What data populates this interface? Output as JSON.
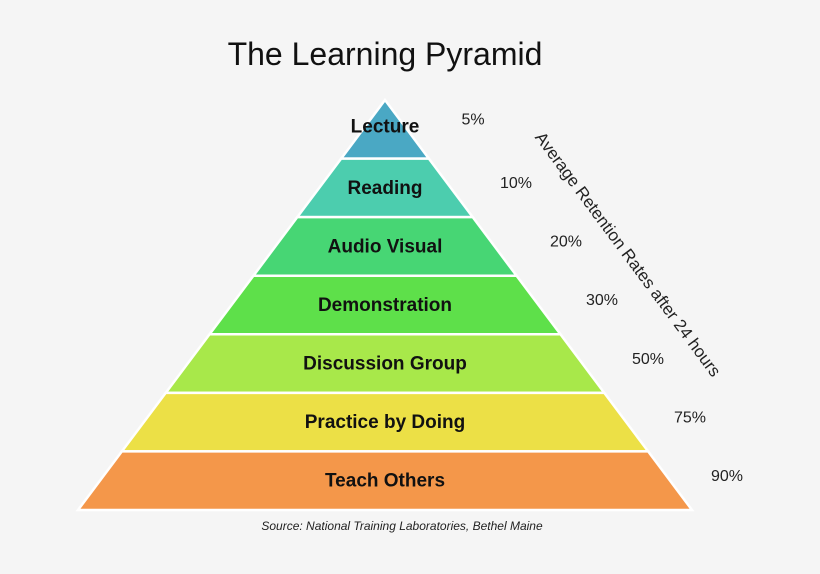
{
  "title": "The Learning Pyramid",
  "axis_label": "Average Retention Rates after 24 hours",
  "source": "Source:  National Training Laboratories, Bethel Maine",
  "levels": [
    {
      "label": "Lecture",
      "retention": "5%",
      "color": "#4aa8c4"
    },
    {
      "label": "Reading",
      "retention": "10%",
      "color": "#4ccdae"
    },
    {
      "label": "Audio Visual",
      "retention": "20%",
      "color": "#47d674"
    },
    {
      "label": "Demonstration",
      "retention": "30%",
      "color": "#5ee04a"
    },
    {
      "label": "Discussion Group",
      "retention": "50%",
      "color": "#a8e84a"
    },
    {
      "label": "Practice by Doing",
      "retention": "75%",
      "color": "#ece046"
    },
    {
      "label": "Teach Others",
      "retention": "90%",
      "color": "#f4974a"
    }
  ]
}
